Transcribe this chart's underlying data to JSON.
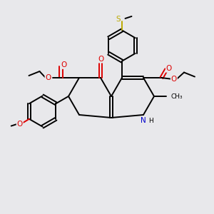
{
  "bg_color": "#e8e8eb",
  "bond_color": "#000000",
  "bond_width": 1.4,
  "o_color": "#dd0000",
  "n_color": "#0000cc",
  "s_color": "#bbaa00",
  "font_size": 6.5,
  "figsize": [
    3.0,
    3.0
  ],
  "dpi": 100,
  "xlim": [
    0,
    10
  ],
  "ylim": [
    0,
    10
  ]
}
